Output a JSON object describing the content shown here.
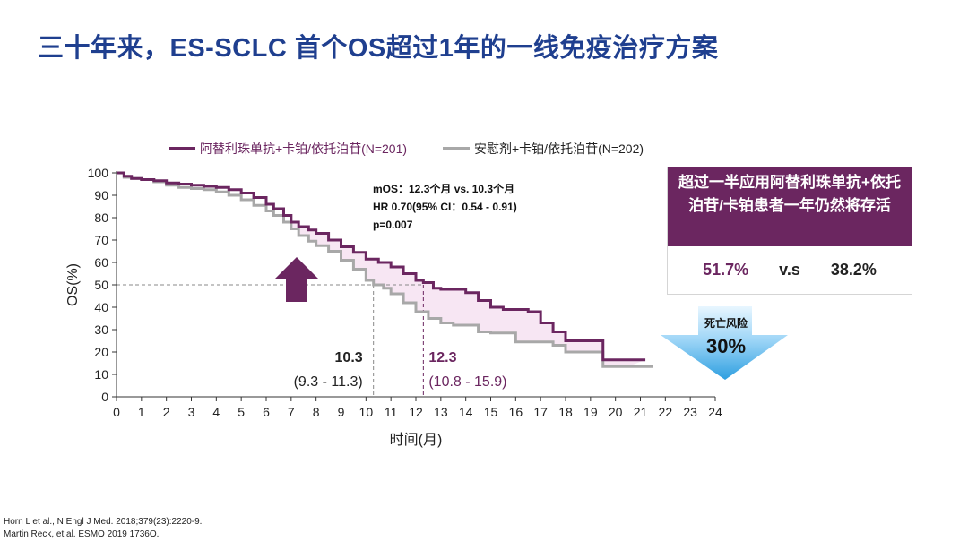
{
  "title": "三十年来，ES-SCLC 首个OS超过1年的一线免疫治疗方案",
  "colors": {
    "treatment": "#6b2660",
    "control": "#a8a8a8",
    "fill": "#f7e6f3",
    "title": "#1f3f8f",
    "arrow_up": "#6b2660",
    "arrow_down": "#2e9fe0"
  },
  "chart_data": {
    "type": "line",
    "subtype": "kaplan-meier",
    "xlabel": "时间(月)",
    "ylabel": "OS(%)",
    "xlim": [
      0,
      24
    ],
    "ylim": [
      0,
      100
    ],
    "xticks": [
      0,
      1,
      2,
      3,
      4,
      5,
      6,
      7,
      8,
      9,
      10,
      11,
      12,
      13,
      14,
      15,
      16,
      17,
      18,
      19,
      20,
      21,
      22,
      23,
      24
    ],
    "yticks": [
      0,
      10,
      20,
      30,
      40,
      50,
      60,
      70,
      80,
      90,
      100
    ],
    "series": [
      {
        "name": "阿替利珠单抗+卡铂/依托泊苷(N=201)",
        "color": "#6b2660",
        "x": [
          0,
          0.3,
          0.6,
          1,
          1.5,
          2,
          2.5,
          3,
          3.5,
          4,
          4.5,
          5,
          5.5,
          6,
          6.3,
          6.7,
          7,
          7.3,
          7.7,
          8,
          8.5,
          9,
          9.5,
          10,
          10.5,
          11,
          11.5,
          12,
          12.3,
          12.7,
          13,
          13.5,
          14,
          14.5,
          15,
          15.5,
          16,
          16.5,
          17,
          17.5,
          18,
          18.5,
          19,
          19.5,
          20,
          20.5,
          21.2
        ],
        "y": [
          100,
          98.5,
          97.5,
          97,
          96.5,
          95.5,
          95,
          94.5,
          94,
          93.5,
          92.5,
          91,
          89,
          86,
          84,
          81,
          78,
          76,
          74.5,
          73,
          70,
          67,
          64.5,
          61.5,
          60,
          58,
          55,
          52,
          51,
          48.5,
          48,
          48,
          46.5,
          43,
          40,
          39,
          39,
          38,
          33,
          29,
          25,
          25,
          25,
          16.5,
          16.5,
          16.5,
          16.5
        ]
      },
      {
        "name": "安慰剂+卡铂/依托泊苷(N=202)",
        "color": "#a8a8a8",
        "x": [
          0,
          0.3,
          0.6,
          1,
          1.5,
          2,
          2.5,
          3,
          3.5,
          4,
          4.5,
          5,
          5.5,
          6,
          6.3,
          6.7,
          7,
          7.3,
          7.7,
          8,
          8.5,
          9,
          9.5,
          10,
          10.3,
          10.7,
          11,
          11.5,
          12,
          12.5,
          13,
          13.5,
          14,
          14.5,
          15,
          15.5,
          16,
          16.5,
          17,
          17.5,
          18,
          18.5,
          19,
          19.5,
          20,
          20.5,
          21.5
        ],
        "y": [
          100,
          98,
          97.5,
          97,
          96,
          94.5,
          93.5,
          93,
          92.5,
          91.5,
          90,
          88,
          85.5,
          83,
          81,
          78,
          75,
          72,
          69.5,
          67.5,
          65,
          61,
          57,
          52,
          50,
          48.5,
          46,
          42,
          38,
          35,
          33,
          32,
          32,
          29,
          28.5,
          28.5,
          24.5,
          24.5,
          24.5,
          23,
          20,
          20,
          20,
          13.5,
          13.5,
          13.5,
          13.5
        ]
      }
    ],
    "stats": {
      "line1": "mOS：12.3个月 vs. 10.3个月",
      "line2": "HR 0.70(95% CI：0.54 - 0.91)",
      "line3": "p=0.007"
    },
    "median_annotations": [
      {
        "x": 10.3,
        "label": "10.3",
        "ci": "(9.3 - 11.3)",
        "color": "#222222"
      },
      {
        "x": 12.3,
        "label": "12.3",
        "ci": "(10.8 - 15.9)",
        "color": "#6b2660"
      }
    ],
    "median_line_y": 50
  },
  "callout": {
    "heading": "超过一半应用阿替利珠单抗+依托泊苷/卡铂患者一年仍然将存活",
    "value1": "51.7%",
    "vs": "v.s",
    "value2": "38.2%"
  },
  "risk": {
    "label": "死亡风险",
    "value": "30%"
  },
  "refs": [
    "Horn L et al., N Engl J Med. 2018;379(23):2220-9.",
    "Martin Reck, et al. ESMO 2019 1736O."
  ]
}
